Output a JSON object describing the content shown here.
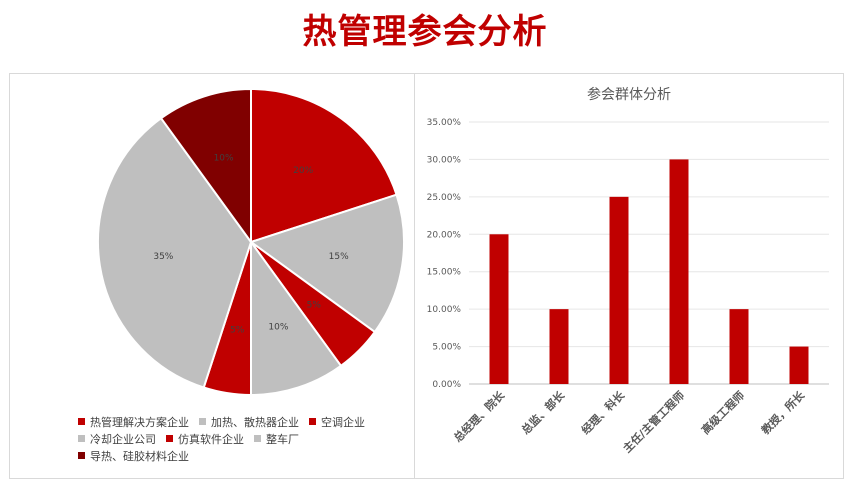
{
  "page": {
    "title": "热管理参会分析"
  },
  "colors": {
    "dark_red": "#c00000",
    "grey": "#bfbfbf",
    "maroon": "#800000",
    "bar": "#c00000"
  },
  "chart_data": [
    {
      "type": "pie",
      "title": "",
      "slices": [
        {
          "label": "热管理解决方案企业",
          "value": 20,
          "display": "20%",
          "color": "#c00000"
        },
        {
          "label": "加热、散热器企业",
          "value": 15,
          "display": "15%",
          "color": "#bfbfbf"
        },
        {
          "label": "空调企业",
          "value": 5,
          "display": "5%",
          "color": "#c00000"
        },
        {
          "label": "冷却企业公司",
          "value": 10,
          "display": "10%",
          "color": "#bfbfbf"
        },
        {
          "label": "仿真软件企业",
          "value": 5,
          "display": "5%",
          "color": "#c00000"
        },
        {
          "label": "整车厂",
          "value": 35,
          "display": "35%",
          "color": "#bfbfbf"
        },
        {
          "label": "导热、硅胶材料企业",
          "value": 10,
          "display": "10%",
          "color": "#800000"
        }
      ],
      "legend_position": "bottom"
    },
    {
      "type": "bar",
      "title": "参会群体分析",
      "categories": [
        "总经理、院长",
        "总监、部长",
        "经理、科长",
        "主任/主管工程师",
        "高级工程师",
        "教授，所长"
      ],
      "values": [
        20,
        10,
        25,
        30,
        10,
        5
      ],
      "ylim": [
        0,
        35
      ],
      "y_ticks": [
        "0.00%",
        "5.00%",
        "10.00%",
        "15.00%",
        "20.00%",
        "25.00%",
        "30.00%",
        "35.00%"
      ],
      "grid": true
    }
  ]
}
